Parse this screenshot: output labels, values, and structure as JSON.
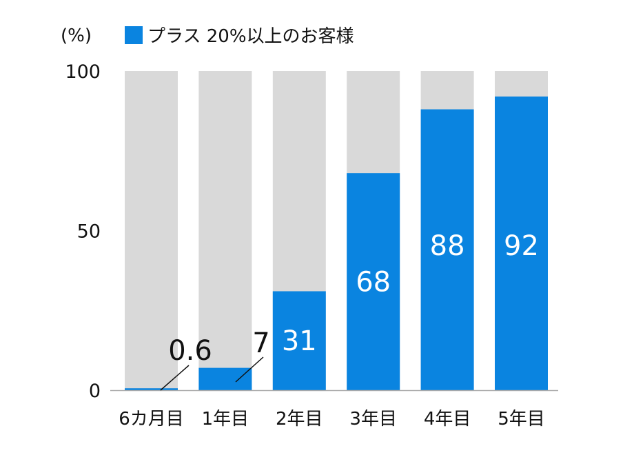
{
  "chart_data": {
    "type": "bar",
    "stacked_to_100": true,
    "unit_label": "(%)",
    "legend": {
      "entries": [
        "プラス 20%以上のお客様"
      ],
      "placement": "top-left"
    },
    "categories": [
      "6カ月目",
      "1年目",
      "2年目",
      "3年目",
      "4年目",
      "5年目"
    ],
    "series": [
      {
        "name": "プラス 20%以上のお客様",
        "values": [
          0.6,
          7,
          31,
          68,
          88,
          92
        ]
      }
    ],
    "data_labels": [
      "0.6",
      "7",
      "31",
      "68",
      "88",
      "92"
    ],
    "yticks": [
      "0",
      "50",
      "100"
    ],
    "ylim": [
      0,
      100
    ],
    "grid": false,
    "colors": {
      "series": "#0A84E0",
      "remainder": "#D9D9D9",
      "axis": "#AAAAAA"
    }
  }
}
